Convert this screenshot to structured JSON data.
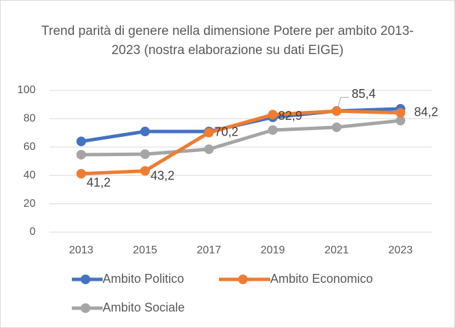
{
  "chart_data": {
    "type": "line",
    "title": "Trend parità di genere nella dimensione Potere per ambito 2013-2023 (nostra elaborazione su dati EIGE)",
    "categories": [
      "2013",
      "2015",
      "2017",
      "2019",
      "2021",
      "2023"
    ],
    "series": [
      {
        "name": "Ambito Politico",
        "color": "#4472c4",
        "values": [
          64,
          71,
          71,
          81,
          85.5,
          87
        ]
      },
      {
        "name": "Ambito Economico",
        "color": "#ed7d31",
        "values": [
          41.2,
          43.2,
          70.2,
          82.9,
          85.4,
          84.2
        ],
        "value_labels": [
          "41,2",
          "43,2",
          "70,2",
          "82,9",
          "85,4",
          "84,2"
        ]
      },
      {
        "name": "Ambito Sociale",
        "color": "#a5a5a5",
        "values": [
          54.6,
          55,
          58.5,
          72,
          74,
          78.7
        ]
      }
    ],
    "ylim": [
      0,
      100
    ],
    "yticks": [
      0,
      20,
      40,
      60,
      80,
      100
    ],
    "grid": true,
    "legend": "bottom"
  }
}
